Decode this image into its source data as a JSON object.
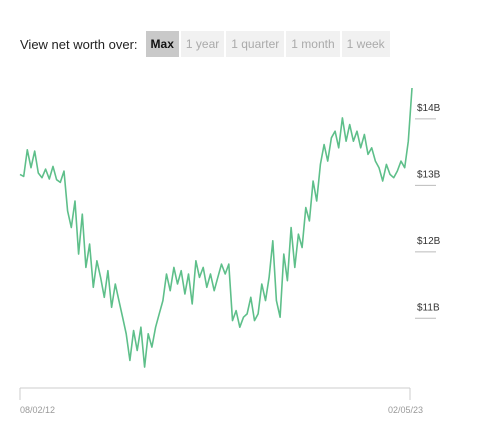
{
  "toolbar": {
    "label": "View net worth over:",
    "ranges": [
      "Max",
      "1 year",
      "1 quarter",
      "1 month",
      "1 week"
    ],
    "active": "Max"
  },
  "colors": {
    "line": "#5ebf8a",
    "axis": "#cccccc",
    "tick": "#bbbbbb"
  },
  "chart_data": {
    "type": "line",
    "title": "",
    "xlabel": "",
    "ylabel": "",
    "x_start": "08/02/12",
    "x_end": "02/05/23",
    "yticks": [
      "$14B",
      "$13B",
      "$12B",
      "$11B"
    ],
    "ytick_values": [
      14,
      13,
      12,
      11
    ],
    "ylim": [
      9.8,
      14.3
    ],
    "grid": false,
    "legend": "none",
    "series": [
      {
        "values": [
          13.0,
          12.97,
          13.37,
          13.1,
          13.35,
          13.02,
          12.95,
          13.08,
          12.93,
          13.12,
          12.92,
          12.88,
          13.05,
          12.45,
          12.2,
          12.6,
          11.8,
          12.4,
          11.6,
          11.95,
          11.3,
          11.7,
          11.45,
          11.15,
          11.55,
          11.0,
          11.35,
          11.1,
          10.85,
          10.6,
          10.2,
          10.65,
          10.35,
          10.7,
          10.1,
          10.6,
          10.4,
          10.7,
          10.9,
          11.1,
          11.5,
          11.25,
          11.6,
          11.35,
          11.55,
          11.2,
          11.5,
          11.05,
          11.7,
          11.45,
          11.6,
          11.3,
          11.5,
          11.25,
          11.45,
          11.65,
          11.5,
          11.65,
          10.8,
          10.95,
          10.7,
          10.85,
          10.9,
          11.15,
          10.8,
          10.9,
          11.35,
          11.1,
          11.45,
          12.0,
          11.1,
          10.85,
          11.8,
          11.4,
          12.2,
          11.6,
          12.1,
          11.9,
          12.5,
          12.3,
          12.9,
          12.6,
          13.15,
          13.45,
          13.2,
          13.55,
          13.65,
          13.4,
          13.85,
          13.5,
          13.75,
          13.5,
          13.65,
          13.4,
          13.6,
          13.3,
          13.4,
          13.2,
          13.1,
          12.9,
          13.15,
          13.0,
          12.95,
          13.05,
          13.2,
          13.1,
          13.5,
          14.3
        ]
      }
    ]
  }
}
